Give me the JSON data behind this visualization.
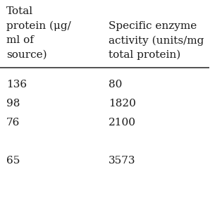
{
  "col1_header_lines": [
    "Total",
    "protein (μg/",
    "ml of",
    "source)"
  ],
  "col2_header_lines": [
    "Specific enzyme",
    "activity (units/mg",
    "total protein)"
  ],
  "rows": [
    [
      "136",
      "80"
    ],
    [
      "98",
      "1820"
    ],
    [
      "76",
      "2100"
    ],
    [
      "",
      ""
    ],
    [
      "65",
      "3573"
    ]
  ],
  "bg_color": "#ffffff",
  "text_color": "#1a1a1a",
  "font_size": 11,
  "header_font_size": 11
}
